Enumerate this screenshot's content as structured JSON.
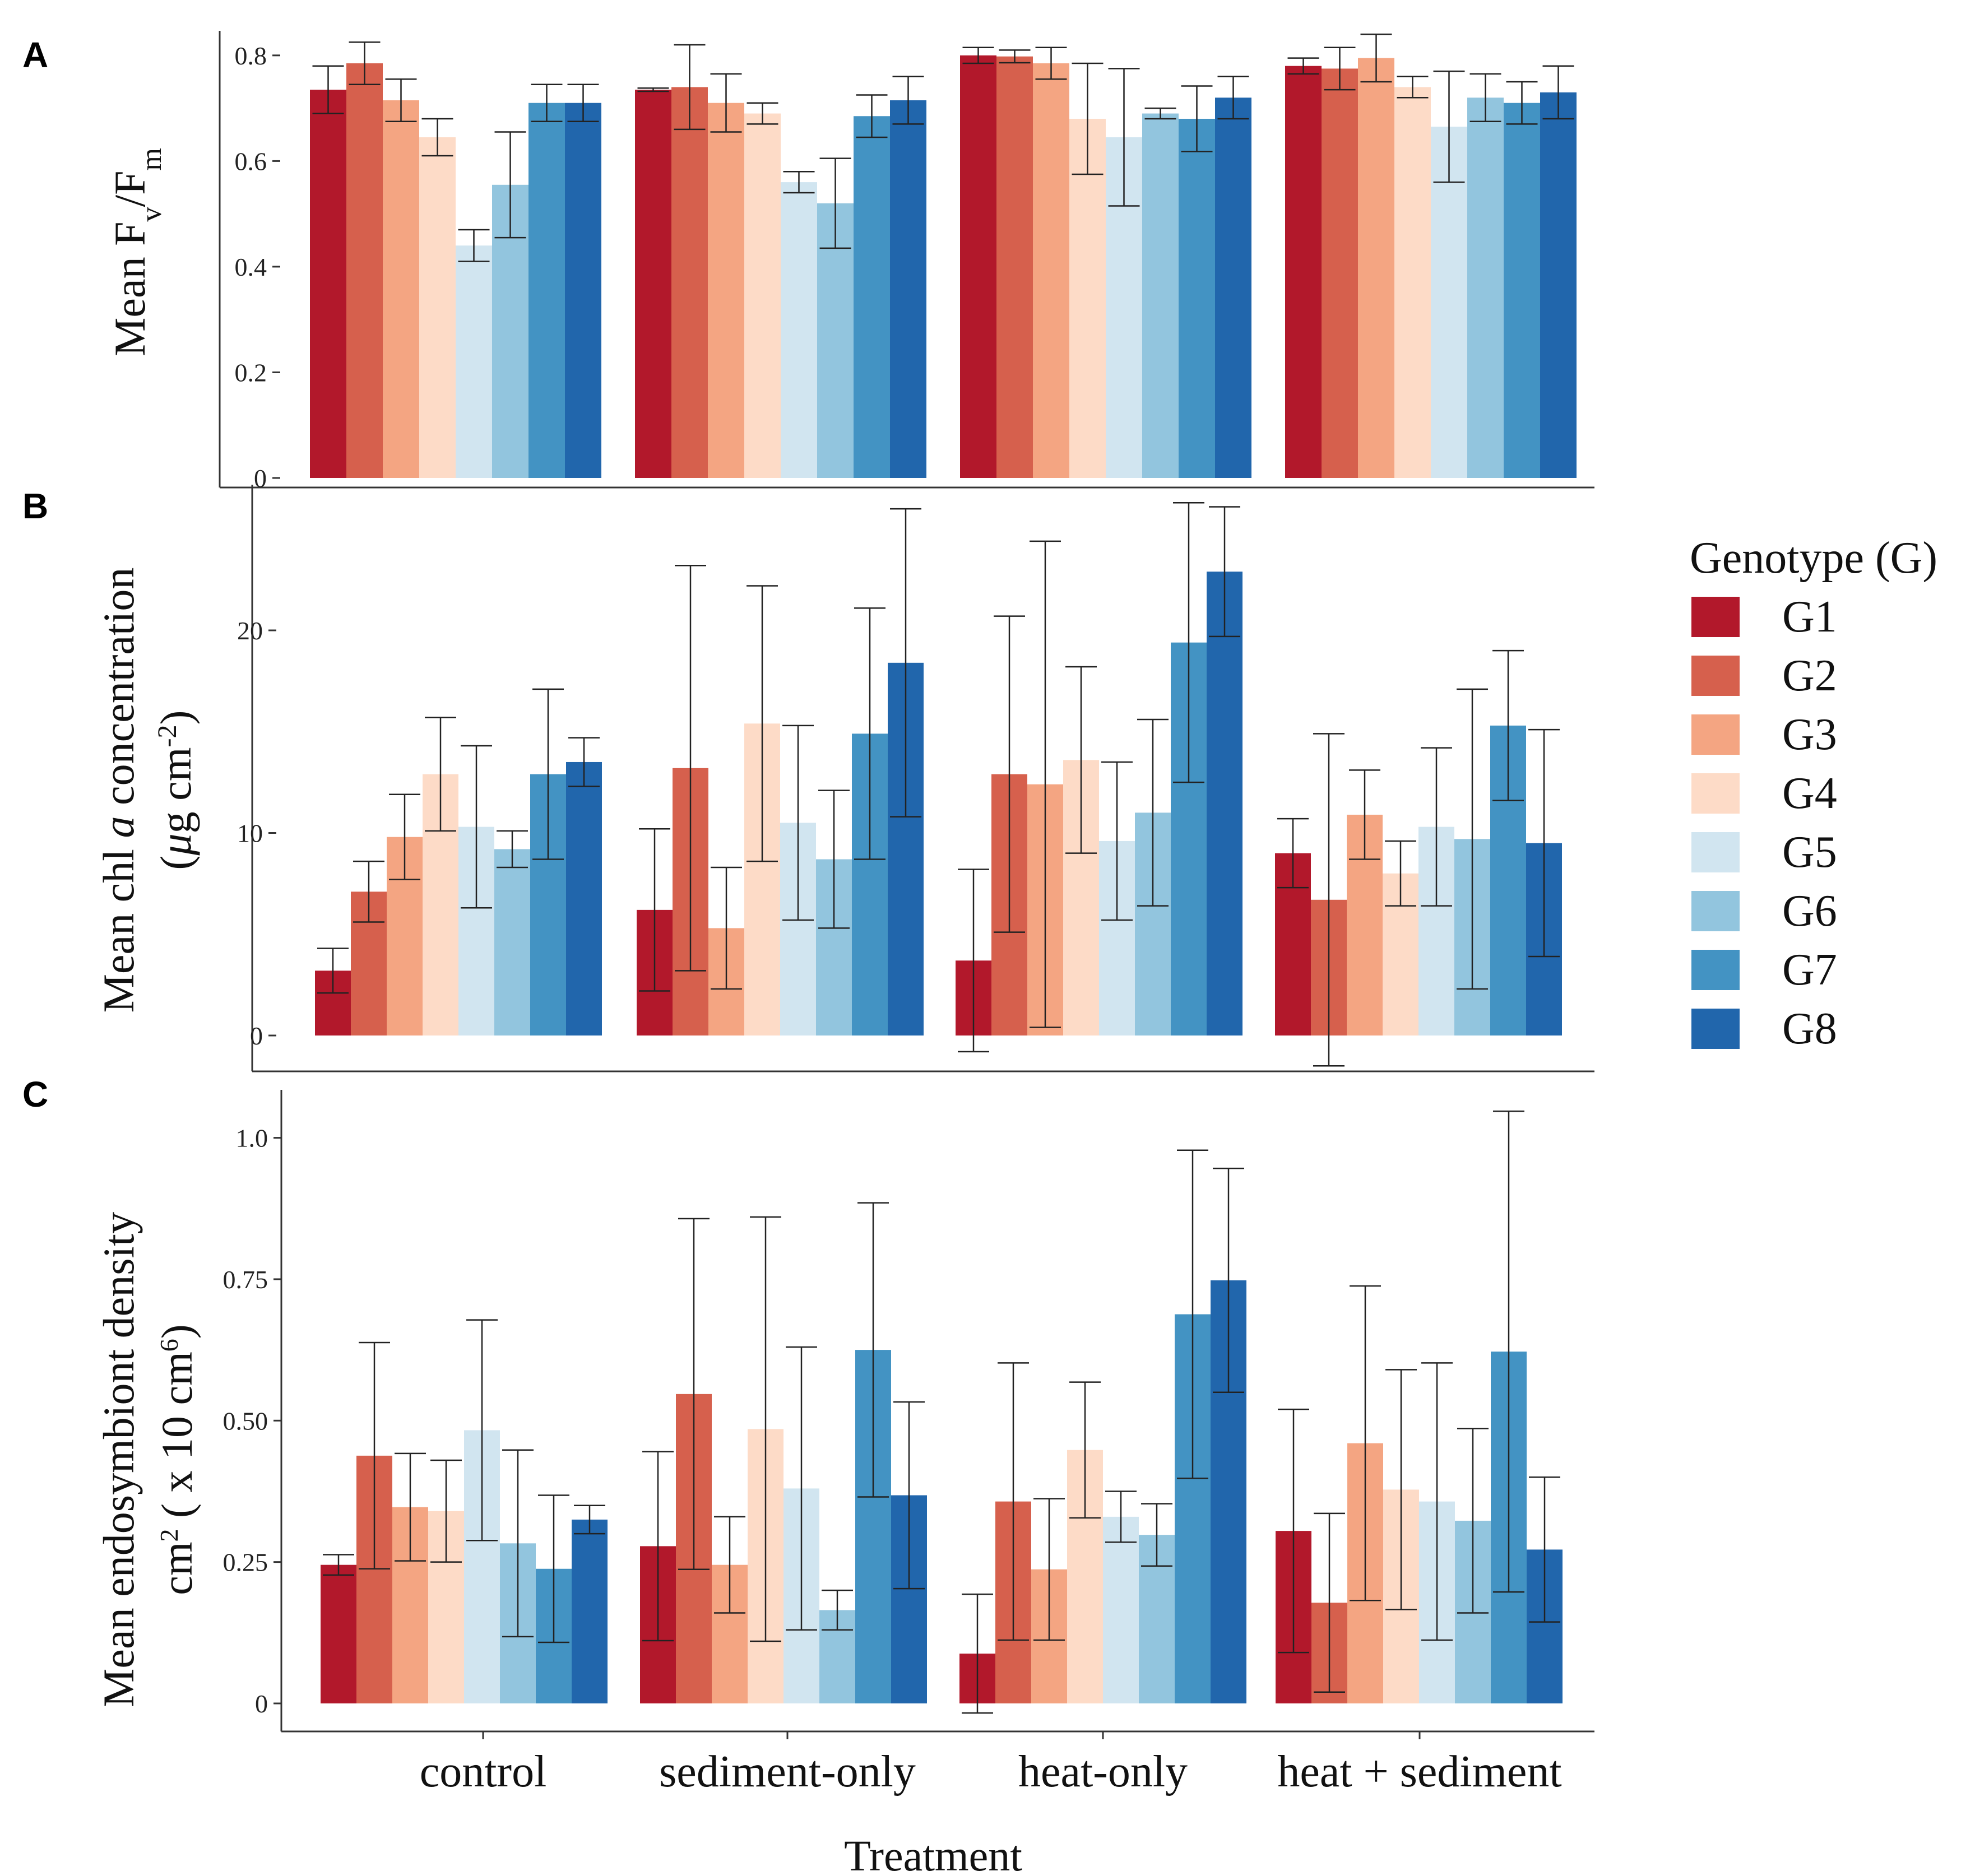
{
  "figure": {
    "x_axis_title": "Treatment",
    "treatments": [
      "control",
      "sediment-only",
      "heat-only",
      "heat + sediment"
    ],
    "legend": {
      "title": "Genotype (G)",
      "entries": [
        {
          "label": "G1",
          "color": "#b2182b"
        },
        {
          "label": "G2",
          "color": "#d6604d"
        },
        {
          "label": "G3",
          "color": "#f4a582"
        },
        {
          "label": "G4",
          "color": "#fddbc7"
        },
        {
          "label": "G5",
          "color": "#d1e5f0"
        },
        {
          "label": "G6",
          "color": "#92c5de"
        },
        {
          "label": "G7",
          "color": "#4393c3"
        },
        {
          "label": "G8",
          "color": "#2166ac"
        }
      ]
    }
  },
  "chart_data": [
    {
      "type": "bar",
      "panel": "A",
      "title": "",
      "xlabel": "",
      "ylabel_parts": {
        "prefix": "Mean F",
        "sub1": "v",
        "mid": "/F",
        "sub2": "m"
      },
      "ylim": [
        0,
        0.82
      ],
      "yticks": [
        0,
        0.2,
        0.4,
        0.6,
        0.8
      ],
      "ytick_labels": [
        "0",
        "0.2",
        "0.4",
        "0.6",
        "0.8"
      ],
      "categories": [
        "control",
        "sediment-only",
        "heat-only",
        "heat + sediment"
      ],
      "series": [
        {
          "name": "G1",
          "values": [
            0.735,
            0.735,
            0.8,
            0.78
          ],
          "errors": [
            0.045,
            0.003,
            0.015,
            0.015
          ]
        },
        {
          "name": "G2",
          "values": [
            0.785,
            0.74,
            0.798,
            0.775
          ],
          "errors": [
            0.04,
            0.08,
            0.012,
            0.04
          ]
        },
        {
          "name": "G3",
          "values": [
            0.715,
            0.71,
            0.785,
            0.795
          ],
          "errors": [
            0.04,
            0.055,
            0.03,
            0.045
          ]
        },
        {
          "name": "G4",
          "values": [
            0.645,
            0.69,
            0.68,
            0.74
          ],
          "errors": [
            0.035,
            0.02,
            0.105,
            0.02
          ]
        },
        {
          "name": "G5",
          "values": [
            0.44,
            0.56,
            0.645,
            0.665
          ],
          "errors": [
            0.03,
            0.02,
            0.13,
            0.105
          ]
        },
        {
          "name": "G6",
          "values": [
            0.555,
            0.52,
            0.69,
            0.72
          ],
          "errors": [
            0.1,
            0.085,
            0.01,
            0.045
          ]
        },
        {
          "name": "G7",
          "values": [
            0.71,
            0.685,
            0.68,
            0.71
          ],
          "errors": [
            0.035,
            0.04,
            0.062,
            0.04
          ]
        },
        {
          "name": "G8",
          "values": [
            0.71,
            0.715,
            0.72,
            0.73
          ],
          "errors": [
            0.035,
            0.045,
            0.04,
            0.05
          ]
        }
      ]
    },
    {
      "type": "bar",
      "panel": "B",
      "title": "",
      "xlabel": "",
      "ylabel_parts": {
        "line1_pre": "Mean chl ",
        "line1_italic": "a",
        "line1_post": " concentration",
        "line2_open": "(",
        "line2_mu": "μ",
        "line2_rest": "g cm",
        "line2_sup": "-2",
        "line2_close": ")"
      },
      "ylim": [
        0,
        26.5
      ],
      "yticks": [
        0,
        10,
        20
      ],
      "ytick_labels": [
        "0",
        "10",
        "20"
      ],
      "categories": [
        "control",
        "sediment-only",
        "heat-only",
        "heat + sediment"
      ],
      "series": [
        {
          "name": "G1",
          "values": [
            3.2,
            6.2,
            3.7,
            9.0
          ],
          "errors": [
            1.1,
            4.0,
            4.5,
            1.7
          ]
        },
        {
          "name": "G2",
          "values": [
            7.1,
            13.2,
            12.9,
            6.7
          ],
          "errors": [
            1.5,
            10.0,
            7.8,
            8.2
          ]
        },
        {
          "name": "G3",
          "values": [
            9.8,
            5.3,
            12.4,
            10.9
          ],
          "errors": [
            2.1,
            3.0,
            12.0,
            2.2
          ]
        },
        {
          "name": "G4",
          "values": [
            12.9,
            15.4,
            13.6,
            8.0
          ],
          "errors": [
            2.8,
            6.8,
            4.6,
            1.6
          ]
        },
        {
          "name": "G5",
          "values": [
            10.3,
            10.5,
            9.6,
            10.3
          ],
          "errors": [
            4.0,
            4.8,
            3.9,
            3.9
          ]
        },
        {
          "name": "G6",
          "values": [
            9.2,
            8.7,
            11.0,
            9.7
          ],
          "errors": [
            0.9,
            3.4,
            4.6,
            7.4
          ]
        },
        {
          "name": "G7",
          "values": [
            12.9,
            14.9,
            19.4,
            15.3
          ],
          "errors": [
            4.2,
            6.2,
            6.9,
            3.7
          ]
        },
        {
          "name": "G8",
          "values": [
            13.5,
            18.4,
            22.9,
            9.5
          ],
          "errors": [
            1.2,
            7.6,
            3.2,
            5.6
          ]
        }
      ]
    },
    {
      "type": "bar",
      "panel": "C",
      "title": "",
      "xlabel": "Treatment",
      "ylabel_parts": {
        "line1": "Mean endosymbiont density",
        "line2_a": "cm",
        "line2_sup1": "2",
        "line2_b": " ( x 10 cm",
        "line2_sup2": "6",
        "line2_c": ")"
      },
      "ylim": [
        0,
        1.06
      ],
      "yticks": [
        0,
        0.25,
        0.5,
        0.75,
        1.0
      ],
      "ytick_labels": [
        "0",
        "0.25",
        "0.50",
        "0.75",
        "1.0"
      ],
      "categories": [
        "control",
        "sediment-only",
        "heat-only",
        "heat + sediment"
      ],
      "series": [
        {
          "name": "G1",
          "values": [
            0.245,
            0.278,
            0.088,
            0.305
          ],
          "errors": [
            0.018,
            0.167,
            0.105,
            0.215
          ]
        },
        {
          "name": "G2",
          "values": [
            0.438,
            0.547,
            0.357,
            0.178
          ],
          "errors": [
            0.2,
            0.31,
            0.245,
            0.158
          ]
        },
        {
          "name": "G3",
          "values": [
            0.347,
            0.245,
            0.237,
            0.46
          ],
          "errors": [
            0.095,
            0.085,
            0.125,
            0.278
          ]
        },
        {
          "name": "G4",
          "values": [
            0.34,
            0.485,
            0.448,
            0.378
          ],
          "errors": [
            0.09,
            0.375,
            0.12,
            0.212
          ]
        },
        {
          "name": "G5",
          "values": [
            0.483,
            0.38,
            0.33,
            0.357
          ],
          "errors": [
            0.195,
            0.25,
            0.045,
            0.245
          ]
        },
        {
          "name": "G6",
          "values": [
            0.283,
            0.165,
            0.298,
            0.323
          ],
          "errors": [
            0.165,
            0.035,
            0.055,
            0.163
          ]
        },
        {
          "name": "G7",
          "values": [
            0.238,
            0.625,
            0.688,
            0.622
          ],
          "errors": [
            0.13,
            0.26,
            0.29,
            0.425
          ]
        },
        {
          "name": "G8",
          "values": [
            0.325,
            0.368,
            0.748,
            0.272
          ],
          "errors": [
            0.025,
            0.165,
            0.198,
            0.128
          ]
        }
      ]
    }
  ]
}
